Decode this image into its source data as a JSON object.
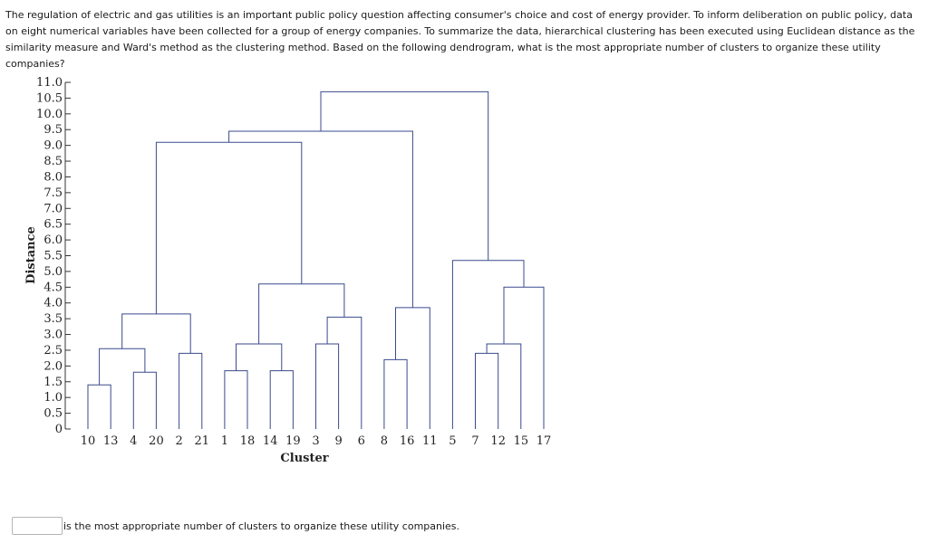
{
  "question": {
    "text": "The regulation of electric and gas utilities is an important public policy question affecting consumer's choice and cost of energy provider. To inform deliberation on public policy, data on eight numerical variables have been collected for a group of energy companies. To summarize the data, hierarchical clustering has been executed using Euclidean distance as the similarity measure and Ward's method as the clustering method. Based on the following dendrogram, what is the most appropriate number of clusters to organize these utility companies?"
  },
  "answer": {
    "value": "",
    "suffix": "is the most appropriate number of clusters to organize these utility companies."
  },
  "colors": {
    "line": "#3a4a8c",
    "axis": "#333333",
    "text": "#222222"
  },
  "chart_data": {
    "type": "dendrogram",
    "xlabel": "Cluster",
    "ylabel": "Distance",
    "ylim": [
      0,
      11.0
    ],
    "yticks": [
      "0",
      "0.5",
      "1.0",
      "1.5",
      "2.0",
      "2.5",
      "3.0",
      "3.5",
      "4.0",
      "4.5",
      "5.0",
      "5.5",
      "6.0",
      "6.5",
      "7.0",
      "7.5",
      "8.0",
      "8.5",
      "9.0",
      "9.5",
      "10.0",
      "10.5",
      "11.0"
    ],
    "leaves": [
      "10",
      "13",
      "4",
      "20",
      "2",
      "21",
      "1",
      "18",
      "14",
      "19",
      "3",
      "9",
      "6",
      "8",
      "16",
      "11",
      "5",
      "7",
      "12",
      "15",
      "17"
    ],
    "merges": [
      {
        "left": "L0",
        "right": "L1",
        "height": 1.4
      },
      {
        "left": "L2",
        "right": "L3",
        "height": 1.8
      },
      {
        "left": "M0",
        "right": "M1",
        "height": 2.55
      },
      {
        "left": "L4",
        "right": "L5",
        "height": 2.4
      },
      {
        "left": "M2",
        "right": "M3",
        "height": 3.65
      },
      {
        "left": "L6",
        "right": "L7",
        "height": 1.85
      },
      {
        "left": "L8",
        "right": "L9",
        "height": 1.85
      },
      {
        "left": "M5",
        "right": "M6",
        "height": 2.7
      },
      {
        "left": "L10",
        "right": "L11",
        "height": 2.7
      },
      {
        "left": "M8",
        "right": "L12",
        "height": 3.55
      },
      {
        "left": "M7",
        "right": "M9",
        "height": 4.6
      },
      {
        "left": "M4",
        "right": "M10",
        "height": 9.1
      },
      {
        "left": "L13",
        "right": "L14",
        "height": 2.2
      },
      {
        "left": "M12",
        "right": "L15",
        "height": 3.85
      },
      {
        "left": "M11",
        "right": "M13",
        "height": 9.45
      },
      {
        "left": "L17",
        "right": "L18",
        "height": 2.4
      },
      {
        "left": "M15",
        "right": "L19",
        "height": 2.7
      },
      {
        "left": "M16",
        "right": "L20",
        "height": 4.5
      },
      {
        "left": "L16",
        "right": "M17",
        "height": 5.35
      },
      {
        "left": "M14",
        "right": "M18",
        "height": 10.7
      }
    ]
  }
}
